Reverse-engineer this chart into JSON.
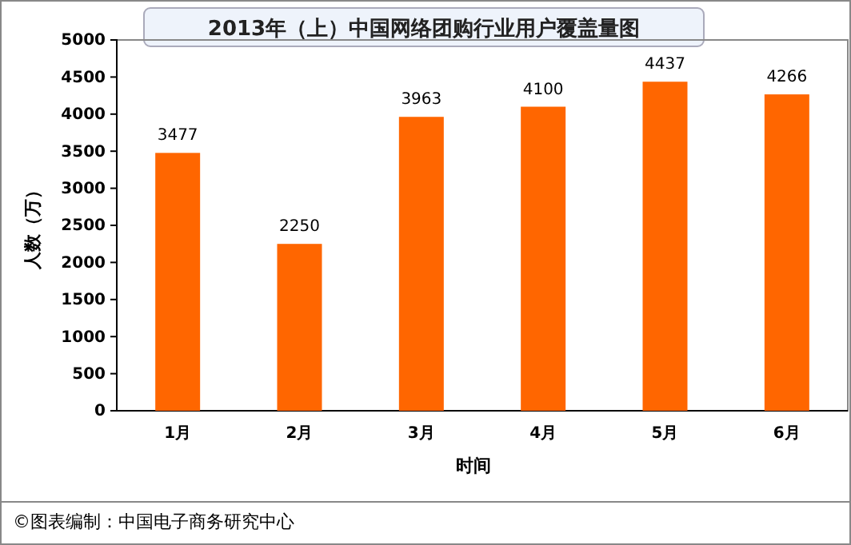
{
  "chart_data": {
    "type": "bar",
    "title": "2013年（上）中国网络团购行业用户覆盖量图",
    "xlabel": "时间",
    "ylabel": "人数（万）",
    "categories": [
      "1月",
      "2月",
      "3月",
      "4月",
      "5月",
      "6月"
    ],
    "values": [
      3477,
      2250,
      3963,
      4100,
      4437,
      4266
    ],
    "color": "#ff6600",
    "ylim": [
      0,
      5000
    ],
    "yticks": [
      0,
      500,
      1000,
      1500,
      2000,
      2500,
      3000,
      3500,
      4000,
      4500,
      5000
    ],
    "data_labels": true,
    "grid": false,
    "annotations": [
      "©图表编制：中国电子商务研究中心"
    ]
  }
}
